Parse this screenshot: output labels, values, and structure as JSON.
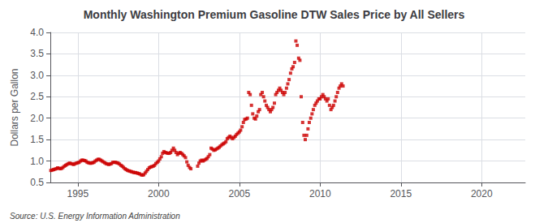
{
  "chart_data": {
    "type": "scatter",
    "title": "Monthly Washington Premium Gasoline DTW Sales Price by All Sellers",
    "ylabel": "Dollars per Gallon",
    "annotations": [
      "Source: U.S. Energy Information Administration"
    ],
    "color": "#cc0000",
    "marker": "square",
    "grid": true,
    "xlim": [
      1993.3,
      2022.7
    ],
    "xticks": [
      1995,
      2000,
      2005,
      2010,
      2015,
      2020
    ],
    "ylim": [
      0.5,
      4.0
    ],
    "yticks": [
      0.5,
      {
        "value": 1.0,
        "label": "1.0"
      },
      1.5,
      {
        "value": 2.0,
        "label": "2.0"
      },
      2.5,
      {
        "value": 3.0,
        "label": "3.0"
      },
      3.5,
      {
        "value": 4.0,
        "label": "4.0"
      }
    ],
    "x": [
      1993.33,
      1993.42,
      1993.5,
      1993.58,
      1993.67,
      1993.75,
      1993.83,
      1993.92,
      1994.0,
      1994.08,
      1994.17,
      1994.25,
      1994.33,
      1994.42,
      1994.5,
      1994.58,
      1994.67,
      1994.75,
      1994.83,
      1994.92,
      1995.0,
      1995.08,
      1995.17,
      1995.25,
      1995.33,
      1995.42,
      1995.5,
      1995.58,
      1995.67,
      1995.75,
      1995.83,
      1995.92,
      1996.0,
      1996.08,
      1996.17,
      1996.25,
      1996.33,
      1996.42,
      1996.5,
      1996.58,
      1996.67,
      1996.75,
      1996.83,
      1996.92,
      1997.0,
      1997.08,
      1997.17,
      1997.25,
      1997.33,
      1997.42,
      1997.5,
      1997.58,
      1997.67,
      1997.75,
      1997.83,
      1997.92,
      1998.0,
      1998.08,
      1998.17,
      1998.25,
      1998.33,
      1998.42,
      1998.5,
      1998.58,
      1998.67,
      1998.75,
      1998.83,
      1998.92,
      1999.0,
      1999.08,
      1999.17,
      1999.25,
      1999.33,
      1999.42,
      1999.5,
      1999.58,
      1999.67,
      1999.75,
      1999.83,
      1999.92,
      2000.0,
      2000.08,
      2000.17,
      2000.25,
      2000.33,
      2000.42,
      2000.5,
      2000.58,
      2000.67,
      2000.75,
      2000.83,
      2000.92,
      2001.0,
      2001.08,
      2001.17,
      2001.25,
      2001.33,
      2001.42,
      2001.5,
      2001.58,
      2001.67,
      2001.75,
      2001.83,
      2001.92,
      2002.0,
      2002.42,
      2002.5,
      2002.58,
      2002.67,
      2002.75,
      2002.83,
      2002.92,
      2003.0,
      2003.08,
      2003.17,
      2003.25,
      2003.33,
      2003.42,
      2003.5,
      2003.58,
      2003.67,
      2003.75,
      2003.83,
      2003.92,
      2004.0,
      2004.08,
      2004.17,
      2004.25,
      2004.33,
      2004.42,
      2004.5,
      2004.58,
      2004.67,
      2004.75,
      2004.83,
      2004.92,
      2005.0,
      2005.08,
      2005.17,
      2005.25,
      2005.33,
      2005.42,
      2005.5,
      2005.58,
      2005.67,
      2005.75,
      2005.83,
      2005.92,
      2006.0,
      2006.08,
      2006.17,
      2006.25,
      2006.33,
      2006.42,
      2006.5,
      2006.58,
      2006.67,
      2006.75,
      2006.83,
      2006.92,
      2007.0,
      2007.08,
      2007.17,
      2007.25,
      2007.33,
      2007.42,
      2007.5,
      2007.58,
      2007.67,
      2007.75,
      2007.83,
      2007.92,
      2008.0,
      2008.08,
      2008.17,
      2008.25,
      2008.33,
      2008.42,
      2008.5,
      2008.58,
      2008.67,
      2008.75,
      2008.83,
      2008.92,
      2009.0,
      2009.08,
      2009.17,
      2009.25,
      2009.33,
      2009.42,
      2009.5,
      2009.58,
      2009.67,
      2009.75,
      2009.83,
      2009.92,
      2010.0,
      2010.08,
      2010.17,
      2010.25,
      2010.33,
      2010.42,
      2010.5,
      2010.58,
      2010.67,
      2010.75,
      2010.83,
      2010.92,
      2011.0,
      2011.08,
      2011.17,
      2011.25,
      2011.33,
      2011.42
    ],
    "values": [
      0.78,
      0.79,
      0.8,
      0.81,
      0.82,
      0.84,
      0.83,
      0.82,
      0.83,
      0.85,
      0.88,
      0.9,
      0.92,
      0.94,
      0.95,
      0.94,
      0.93,
      0.92,
      0.94,
      0.95,
      0.96,
      0.97,
      1.0,
      1.02,
      1.02,
      1.01,
      1.0,
      0.97,
      0.96,
      0.95,
      0.95,
      0.96,
      0.97,
      1.0,
      1.02,
      1.04,
      1.04,
      1.02,
      1.0,
      0.98,
      0.96,
      0.94,
      0.93,
      0.92,
      0.93,
      0.94,
      0.97,
      0.97,
      0.97,
      0.96,
      0.95,
      0.93,
      0.9,
      0.88,
      0.85,
      0.82,
      0.8,
      0.78,
      0.77,
      0.76,
      0.75,
      0.74,
      0.73,
      0.73,
      0.72,
      0.71,
      0.7,
      0.68,
      0.67,
      0.68,
      0.72,
      0.76,
      0.8,
      0.84,
      0.86,
      0.87,
      0.88,
      0.9,
      0.94,
      0.97,
      1.0,
      1.05,
      1.1,
      1.18,
      1.22,
      1.2,
      1.19,
      1.18,
      1.18,
      1.2,
      1.25,
      1.3,
      1.25,
      1.2,
      1.15,
      1.18,
      1.2,
      1.18,
      1.15,
      1.12,
      1.08,
      0.98,
      0.9,
      0.85,
      0.82,
      0.88,
      0.95,
      1.0,
      1.02,
      1.0,
      1.02,
      1.04,
      1.06,
      1.1,
      1.15,
      1.3,
      1.28,
      1.25,
      1.26,
      1.28,
      1.3,
      1.32,
      1.35,
      1.38,
      1.4,
      1.42,
      1.45,
      1.52,
      1.55,
      1.58,
      1.55,
      1.52,
      1.55,
      1.58,
      1.62,
      1.65,
      1.68,
      1.72,
      1.8,
      1.9,
      1.97,
      1.98,
      2.0,
      2.6,
      2.55,
      2.3,
      2.1,
      2.0,
      1.98,
      2.05,
      2.15,
      2.2,
      2.55,
      2.6,
      2.5,
      2.4,
      2.3,
      2.25,
      2.2,
      2.15,
      2.2,
      2.25,
      2.35,
      2.55,
      2.6,
      2.65,
      2.7,
      2.65,
      2.6,
      2.55,
      2.6,
      2.7,
      2.8,
      2.9,
      3.05,
      3.15,
      3.2,
      3.3,
      3.8,
      3.7,
      3.4,
      3.35,
      2.5,
      1.9,
      1.6,
      1.5,
      1.6,
      1.75,
      1.9,
      2.0,
      2.1,
      2.2,
      2.3,
      2.35,
      2.4,
      2.45,
      2.45,
      2.5,
      2.55,
      2.5,
      2.45,
      2.4,
      2.45,
      2.3,
      2.2,
      2.25,
      2.3,
      2.4,
      2.5,
      2.6,
      2.7,
      2.75,
      2.8,
      2.75
    ]
  }
}
